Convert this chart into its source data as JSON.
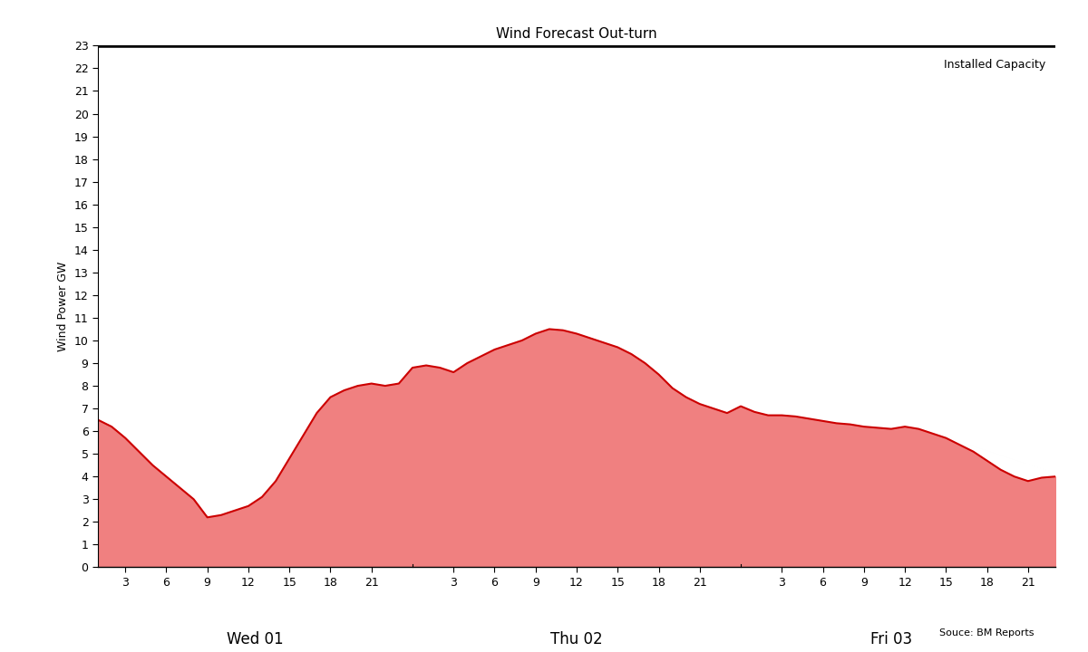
{
  "title": "Wind Forecast Out-turn",
  "ylabel": "Wind Power GW",
  "source": "Souce: BM Reports",
  "installed_capacity_label": "Installed Capacity",
  "installed_capacity": 23,
  "ylim": [
    0,
    23
  ],
  "yticks": [
    0,
    1,
    2,
    3,
    4,
    5,
    6,
    7,
    8,
    9,
    10,
    11,
    12,
    13,
    14,
    15,
    16,
    17,
    18,
    19,
    20,
    21,
    22,
    23
  ],
  "fill_color": "#f08080",
  "line_color": "#cc0000",
  "background_color": "#ffffff",
  "day_labels": [
    {
      "label": "Wed 01",
      "day_index": 0
    },
    {
      "label": "Thu 02",
      "day_index": 1
    },
    {
      "label": "Fri 03",
      "day_index": 2
    }
  ],
  "hour_ticks": [
    3,
    6,
    9,
    12,
    15,
    18,
    21
  ],
  "day_separators": [
    24,
    48
  ],
  "data_points": [
    [
      1,
      6.5
    ],
    [
      2,
      6.2
    ],
    [
      3,
      5.7
    ],
    [
      4,
      5.1
    ],
    [
      5,
      4.5
    ],
    [
      6,
      4.0
    ],
    [
      7,
      3.5
    ],
    [
      8,
      3.0
    ],
    [
      9,
      2.2
    ],
    [
      10,
      2.3
    ],
    [
      11,
      2.5
    ],
    [
      12,
      2.7
    ],
    [
      13,
      3.1
    ],
    [
      14,
      3.8
    ],
    [
      15,
      4.8
    ],
    [
      16,
      5.8
    ],
    [
      17,
      6.8
    ],
    [
      18,
      7.5
    ],
    [
      19,
      7.8
    ],
    [
      20,
      8.0
    ],
    [
      21,
      8.1
    ],
    [
      22,
      8.0
    ],
    [
      23,
      8.1
    ],
    [
      24,
      8.8
    ],
    [
      25,
      8.9
    ],
    [
      26,
      8.8
    ],
    [
      27,
      8.6
    ],
    [
      28,
      9.0
    ],
    [
      29,
      9.3
    ],
    [
      30,
      9.6
    ],
    [
      31,
      9.8
    ],
    [
      32,
      10.0
    ],
    [
      33,
      10.3
    ],
    [
      34,
      10.5
    ],
    [
      35,
      10.45
    ],
    [
      36,
      10.3
    ],
    [
      37,
      10.1
    ],
    [
      38,
      9.9
    ],
    [
      39,
      9.7
    ],
    [
      40,
      9.4
    ],
    [
      41,
      9.0
    ],
    [
      42,
      8.5
    ],
    [
      43,
      7.9
    ],
    [
      44,
      7.5
    ],
    [
      45,
      7.2
    ],
    [
      46,
      7.0
    ],
    [
      47,
      6.8
    ],
    [
      48,
      7.1
    ],
    [
      49,
      6.85
    ],
    [
      50,
      6.7
    ],
    [
      51,
      6.7
    ],
    [
      52,
      6.65
    ],
    [
      53,
      6.55
    ],
    [
      54,
      6.45
    ],
    [
      55,
      6.35
    ],
    [
      56,
      6.3
    ],
    [
      57,
      6.2
    ],
    [
      58,
      6.15
    ],
    [
      59,
      6.1
    ],
    [
      60,
      6.2
    ],
    [
      61,
      6.1
    ],
    [
      62,
      5.9
    ],
    [
      63,
      5.7
    ],
    [
      64,
      5.4
    ],
    [
      65,
      5.1
    ],
    [
      66,
      4.7
    ],
    [
      67,
      4.3
    ],
    [
      68,
      4.0
    ],
    [
      69,
      3.8
    ],
    [
      70,
      3.95
    ],
    [
      71,
      4.0
    ]
  ],
  "title_fontsize": 11,
  "label_fontsize": 9,
  "tick_fontsize": 9,
  "day_label_fontsize": 12
}
